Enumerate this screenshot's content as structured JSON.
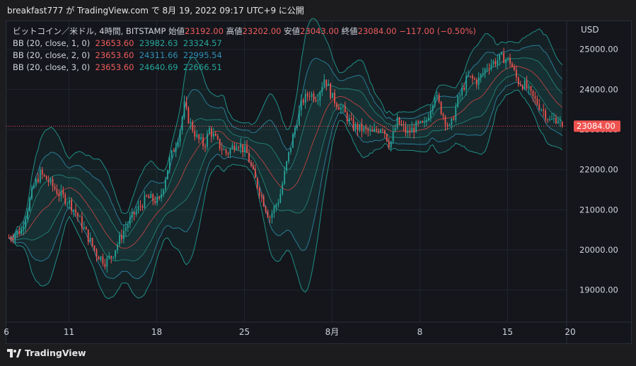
{
  "caption": "breakfast777 が TradingView.com で 8月 19, 2022 09:17 UTC+9 に公開",
  "brand": "TradingView",
  "legend": {
    "title": "ビットコイン／米ドル, 4時間, BITSTAMP",
    "open_label": "始値",
    "open": "23192.00",
    "high_label": "高値",
    "high": "23202.00",
    "low_label": "安値",
    "low": "23043.00",
    "close_label": "終値",
    "close": "23084.00",
    "change": "−117.00 (−0.50%)",
    "bb": [
      {
        "label": "BB (20, close, 1, 0)",
        "basis": "23653.60",
        "upper": "23982.63",
        "lower": "23324.57"
      },
      {
        "label": "BB (20, close, 2, 0)",
        "basis": "23653.60",
        "upper": "24311.66",
        "lower": "22995.54"
      },
      {
        "label": "BB (20, close, 3, 0)",
        "basis": "23653.60",
        "upper": "24640.69",
        "lower": "22666.51"
      }
    ]
  },
  "colors": {
    "up": "#26a69a",
    "down": "#ef5350",
    "basis": "#b04040",
    "band": "#26a69a"
  },
  "chart_data": {
    "type": "candlestick",
    "currency": "USD",
    "last_price": 23084.0,
    "y_ticks": [
      19000,
      20000,
      21000,
      22000,
      23000,
      24000,
      25000
    ],
    "y_tick_labels": [
      "19000.00",
      "20000.00",
      "21000.00",
      "22000.00",
      "23000.00",
      "24000.00",
      "25000.00"
    ],
    "ylim": [
      18200,
      25700
    ],
    "x_ticks": [
      {
        "label": "6",
        "day": 6
      },
      {
        "label": "11",
        "day": 11
      },
      {
        "label": "18",
        "day": 18
      },
      {
        "label": "25",
        "day": 25
      },
      {
        "label": "8月",
        "day": 32
      },
      {
        "label": "8",
        "day": 39
      },
      {
        "label": "15",
        "day": 46
      },
      {
        "label": "20",
        "day": 51
      }
    ],
    "xlim": [
      6,
      51
    ],
    "x_unit": "day since Jul 1 (Jul 32 = Aug 1)",
    "close_path": [
      [
        6.2,
        20300
      ],
      [
        7.2,
        20500
      ],
      [
        8.2,
        21600
      ],
      [
        8.7,
        21900
      ],
      [
        9.4,
        21700
      ],
      [
        10.2,
        21400
      ],
      [
        11.0,
        21200
      ],
      [
        11.6,
        20900
      ],
      [
        12.4,
        20400
      ],
      [
        13.2,
        19900
      ],
      [
        13.9,
        19700
      ],
      [
        14.4,
        19850
      ],
      [
        15.4,
        20500
      ],
      [
        16.2,
        20900
      ],
      [
        17.2,
        21300
      ],
      [
        18.2,
        21200
      ],
      [
        19.0,
        22200
      ],
      [
        19.8,
        22900
      ],
      [
        20.2,
        23600
      ],
      [
        20.6,
        23200
      ],
      [
        21.2,
        22800
      ],
      [
        21.8,
        22600
      ],
      [
        22.2,
        23000
      ],
      [
        23.0,
        22600
      ],
      [
        23.6,
        22400
      ],
      [
        24.4,
        22700
      ],
      [
        25.2,
        22400
      ],
      [
        25.8,
        21800
      ],
      [
        26.4,
        21300
      ],
      [
        27.0,
        20800
      ],
      [
        27.8,
        21300
      ],
      [
        28.4,
        22200
      ],
      [
        29.0,
        23000
      ],
      [
        29.6,
        23700
      ],
      [
        30.2,
        23900
      ],
      [
        30.8,
        23800
      ],
      [
        31.4,
        24300
      ],
      [
        32.0,
        23800
      ],
      [
        32.8,
        23500
      ],
      [
        33.6,
        23100
      ],
      [
        34.4,
        23000
      ],
      [
        35.2,
        22900
      ],
      [
        36.0,
        23100
      ],
      [
        36.6,
        22600
      ],
      [
        37.2,
        23200
      ],
      [
        38.0,
        22900
      ],
      [
        38.8,
        23100
      ],
      [
        39.4,
        23100
      ],
      [
        40.2,
        23900
      ],
      [
        40.8,
        23400
      ],
      [
        41.4,
        23000
      ],
      [
        42.0,
        23700
      ],
      [
        42.8,
        24300
      ],
      [
        43.6,
        24200
      ],
      [
        44.4,
        24600
      ],
      [
        45.0,
        24700
      ],
      [
        45.6,
        24800
      ],
      [
        46.2,
        24700
      ],
      [
        46.8,
        24200
      ],
      [
        47.4,
        24100
      ],
      [
        48.0,
        23800
      ],
      [
        48.8,
        23500
      ],
      [
        49.4,
        23200
      ],
      [
        50.0,
        23300
      ],
      [
        50.4,
        23084
      ]
    ]
  }
}
